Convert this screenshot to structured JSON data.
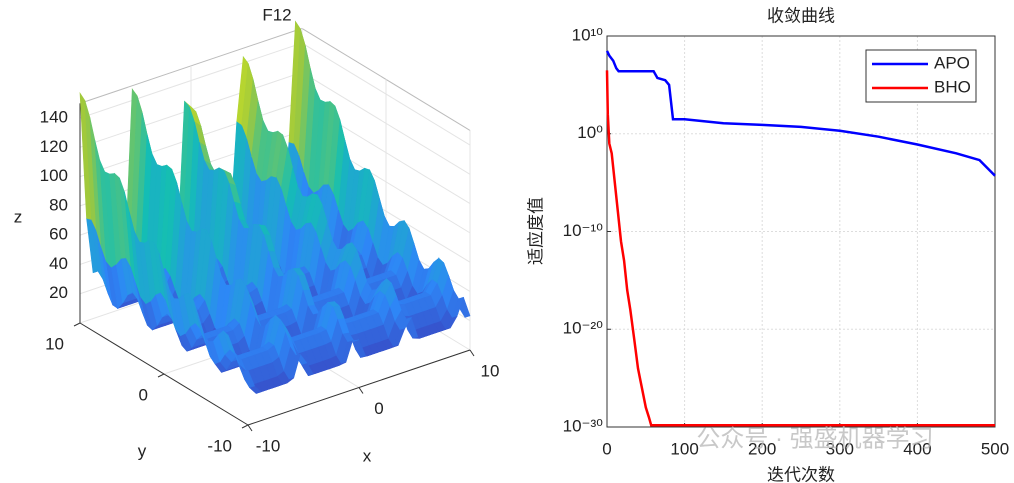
{
  "chart_data": [
    {
      "type": "surface",
      "title": "F12",
      "xlabel": "x",
      "ylabel": "y",
      "zlabel": "z",
      "xlim": [
        -10,
        10
      ],
      "ylim": [
        -10,
        10
      ],
      "zlim": [
        0,
        150
      ],
      "xticks": [
        -10,
        0,
        10
      ],
      "yticks": [
        -10,
        0,
        10
      ],
      "zticks": [
        20,
        40,
        60,
        80,
        100,
        120,
        140
      ],
      "grid": true
    },
    {
      "type": "line",
      "title": "收敛曲线",
      "xlabel": "迭代次数",
      "ylabel": "适应度值",
      "xlim": [
        0,
        500
      ],
      "xticks": [
        0,
        100,
        200,
        300,
        400,
        500
      ],
      "yscale": "log",
      "ylim": [
        1e-30,
        10000000000.0
      ],
      "yticks": [
        {
          "value": 10000000000.0,
          "label": "10¹⁰"
        },
        {
          "value": 1,
          "label": "10⁰"
        },
        {
          "value": 1e-10,
          "label": "10⁻¹⁰"
        },
        {
          "value": 1e-20,
          "label": "10⁻²⁰"
        },
        {
          "value": 1e-30,
          "label": "10⁻³⁰"
        }
      ],
      "grid": true,
      "legend": "northeast",
      "series": [
        {
          "name": "APO",
          "color": "#0000ff",
          "x": [
            0,
            3,
            8,
            12,
            15,
            60,
            65,
            75,
            80,
            85,
            100,
            150,
            200,
            250,
            300,
            350,
            400,
            450,
            480,
            500
          ],
          "values": [
            300000000.0,
            100000000.0,
            30000000.0,
            5000000.0,
            2500000.0,
            2500000.0,
            500000.0,
            300000.0,
            100000.0,
            30,
            30,
            12,
            8,
            5,
            2,
            0.5,
            0.08,
            0.01,
            0.002,
            5e-05
          ]
        },
        {
          "name": "BHO",
          "color": "#ff0000",
          "x": [
            0,
            1,
            3,
            6,
            10,
            14,
            18,
            22,
            26,
            30,
            35,
            40,
            45,
            50,
            54,
            57,
            500
          ],
          "values": [
            3000000.0,
            100,
            0.1,
            0.01,
            1e-05,
            1e-08,
            1e-11,
            1e-13,
            1e-16,
            1e-18,
            1e-21,
            1e-24,
            1e-26,
            1e-28,
            1e-29,
            1.5e-30,
            1.5e-30
          ]
        }
      ]
    }
  ],
  "watermark": "公众号 · 强盛机器学习"
}
